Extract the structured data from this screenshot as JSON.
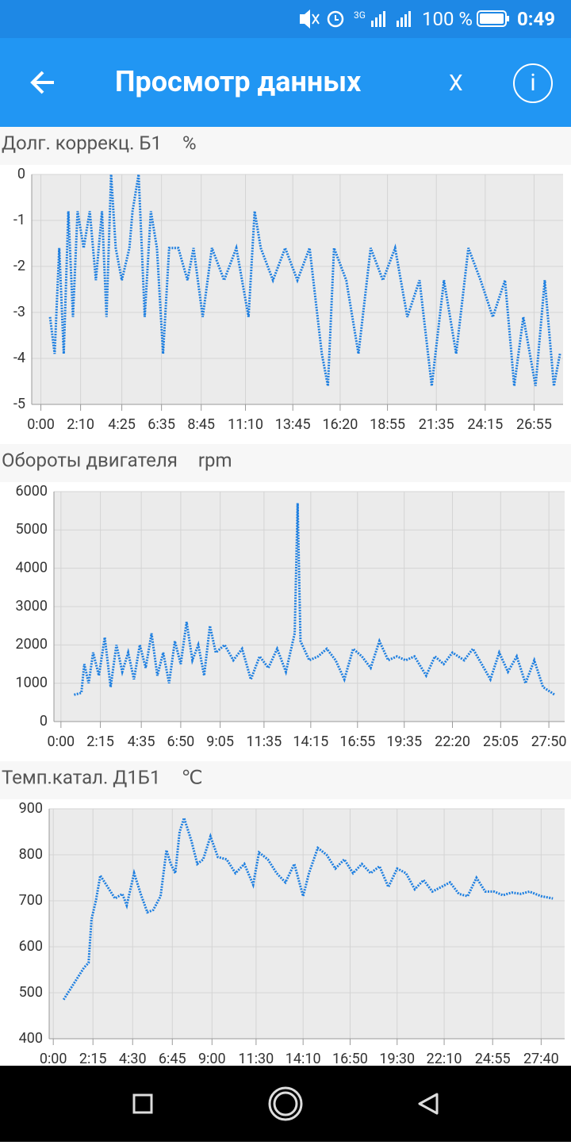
{
  "status_bar": {
    "network": "3G",
    "battery": "100 %",
    "time": "0:49"
  },
  "app_bar": {
    "title": "Просмотр данных",
    "close": "X",
    "info": "i"
  },
  "chart_data": [
    {
      "type": "line",
      "title": "Долг. коррекц. Б1",
      "unit": "%",
      "color": "#1e7fe0",
      "grid": true,
      "xlim": [
        -30,
        1710
      ],
      "ylim": [
        -5,
        0
      ],
      "yticks": [
        -5,
        -4,
        -3,
        -2,
        -1,
        0
      ],
      "xticks": [
        {
          "value": 0,
          "label": "0:00"
        },
        {
          "value": 130,
          "label": "2:10"
        },
        {
          "value": 265,
          "label": "4:25"
        },
        {
          "value": 395,
          "label": "6:35"
        },
        {
          "value": 525,
          "label": "8:45"
        },
        {
          "value": 670,
          "label": "11:10"
        },
        {
          "value": 825,
          "label": "13:45"
        },
        {
          "value": 980,
          "label": "16:20"
        },
        {
          "value": 1135,
          "label": "18:55"
        },
        {
          "value": 1295,
          "label": "21:35"
        },
        {
          "value": 1455,
          "label": "24:15"
        },
        {
          "value": 1615,
          "label": "26:55"
        }
      ],
      "x": [
        30,
        45,
        60,
        75,
        90,
        105,
        120,
        140,
        160,
        180,
        200,
        215,
        230,
        245,
        265,
        290,
        300,
        320,
        340,
        360,
        380,
        400,
        420,
        450,
        480,
        500,
        530,
        560,
        600,
        640,
        680,
        700,
        720,
        760,
        800,
        840,
        880,
        920,
        940,
        960,
        1000,
        1040,
        1080,
        1120,
        1160,
        1200,
        1240,
        1280,
        1320,
        1360,
        1400,
        1440,
        1480,
        1520,
        1550,
        1580,
        1620,
        1650,
        1680,
        1700
      ],
      "values": [
        -3.1,
        -3.9,
        -1.6,
        -3.9,
        -0.8,
        -3.1,
        -0.8,
        -1.6,
        -0.8,
        -2.3,
        -0.8,
        -3.1,
        0,
        -1.6,
        -2.3,
        -1.6,
        -0.8,
        0,
        -3.1,
        -0.8,
        -1.6,
        -3.9,
        -1.6,
        -1.6,
        -2.3,
        -1.6,
        -3.1,
        -1.6,
        -2.3,
        -1.6,
        -3.1,
        -0.8,
        -1.6,
        -2.3,
        -1.6,
        -2.3,
        -1.6,
        -3.9,
        -4.6,
        -1.6,
        -2.3,
        -3.9,
        -1.6,
        -2.3,
        -1.6,
        -3.1,
        -2.3,
        -4.6,
        -2.3,
        -3.9,
        -1.6,
        -2.3,
        -3.1,
        -2.3,
        -4.6,
        -3.1,
        -4.6,
        -2.3,
        -4.6,
        -3.9
      ]
    },
    {
      "type": "line",
      "title": "Обороты двигателя",
      "unit": "rpm",
      "color": "#1e7fe0",
      "grid": true,
      "xlim": [
        -24,
        1724
      ],
      "ylim": [
        0,
        6000
      ],
      "yticks": [
        0,
        1000,
        2000,
        3000,
        4000,
        5000,
        6000
      ],
      "xticks": [
        {
          "value": 0,
          "label": "0:00"
        },
        {
          "value": 135,
          "label": "2:15"
        },
        {
          "value": 275,
          "label": "4:35"
        },
        {
          "value": 410,
          "label": "6:50"
        },
        {
          "value": 545,
          "label": "9:05"
        },
        {
          "value": 695,
          "label": "11:35"
        },
        {
          "value": 855,
          "label": "14:15"
        },
        {
          "value": 1015,
          "label": "16:55"
        },
        {
          "value": 1175,
          "label": "19:35"
        },
        {
          "value": 1340,
          "label": "22:20"
        },
        {
          "value": 1505,
          "label": "25:05"
        },
        {
          "value": 1670,
          "label": "27:50"
        }
      ],
      "x": [
        45,
        70,
        80,
        95,
        110,
        130,
        150,
        170,
        190,
        210,
        230,
        250,
        270,
        290,
        310,
        330,
        350,
        370,
        390,
        410,
        430,
        450,
        470,
        490,
        510,
        530,
        560,
        590,
        620,
        650,
        680,
        710,
        740,
        770,
        800,
        810,
        820,
        850,
        880,
        910,
        940,
        970,
        1000,
        1030,
        1060,
        1090,
        1120,
        1150,
        1180,
        1210,
        1250,
        1280,
        1310,
        1340,
        1380,
        1410,
        1440,
        1470,
        1500,
        1530,
        1560,
        1590,
        1620,
        1650,
        1690
      ],
      "values": [
        700,
        750,
        1500,
        1000,
        1800,
        1200,
        2200,
        900,
        2000,
        1300,
        1800,
        1100,
        2000,
        1400,
        2300,
        1200,
        1800,
        1000,
        2100,
        1500,
        2600,
        1600,
        2000,
        1200,
        2500,
        1800,
        2000,
        1600,
        1900,
        1100,
        1700,
        1400,
        1900,
        1300,
        2300,
        5700,
        2100,
        1600,
        1700,
        1900,
        1600,
        1100,
        1900,
        1700,
        1400,
        2100,
        1600,
        1700,
        1600,
        1700,
        1200,
        1700,
        1500,
        1800,
        1600,
        1900,
        1500,
        1100,
        1800,
        1300,
        1700,
        1000,
        1600,
        900,
        700
      ]
    },
    {
      "type": "line",
      "title": "Темп.катал. Д1Б1",
      "unit": "℃",
      "color": "#1e7fe0",
      "grid": true,
      "xlim": [
        -14,
        1740
      ],
      "ylim": [
        400,
        900
      ],
      "yticks": [
        400,
        500,
        600,
        700,
        800,
        900
      ],
      "xticks": [
        {
          "value": 0,
          "label": "0:00"
        },
        {
          "value": 135,
          "label": "2:15"
        },
        {
          "value": 270,
          "label": "4:30"
        },
        {
          "value": 405,
          "label": "6:45"
        },
        {
          "value": 540,
          "label": "9:00"
        },
        {
          "value": 690,
          "label": "11:30"
        },
        {
          "value": 850,
          "label": "14:10"
        },
        {
          "value": 1010,
          "label": "16:50"
        },
        {
          "value": 1170,
          "label": "19:30"
        },
        {
          "value": 1330,
          "label": "22:10"
        },
        {
          "value": 1495,
          "label": "24:55"
        },
        {
          "value": 1660,
          "label": "27:40"
        }
      ],
      "x": [
        35,
        70,
        105,
        120,
        130,
        145,
        160,
        180,
        210,
        235,
        250,
        275,
        300,
        320,
        340,
        365,
        385,
        400,
        415,
        430,
        445,
        470,
        490,
        510,
        535,
        560,
        590,
        620,
        650,
        680,
        700,
        730,
        760,
        790,
        820,
        850,
        870,
        900,
        930,
        960,
        990,
        1020,
        1050,
        1080,
        1110,
        1140,
        1170,
        1200,
        1230,
        1260,
        1290,
        1320,
        1350,
        1380,
        1410,
        1440,
        1470,
        1500,
        1530,
        1560,
        1590,
        1620,
        1660,
        1700
      ],
      "values": [
        485,
        520,
        555,
        565,
        660,
        700,
        755,
        735,
        705,
        715,
        690,
        760,
        710,
        675,
        680,
        710,
        810,
        780,
        760,
        850,
        880,
        830,
        780,
        790,
        840,
        795,
        790,
        760,
        780,
        735,
        805,
        790,
        760,
        740,
        780,
        710,
        760,
        815,
        800,
        770,
        790,
        760,
        780,
        760,
        775,
        730,
        770,
        760,
        725,
        745,
        720,
        730,
        740,
        715,
        710,
        750,
        720,
        720,
        712,
        718,
        715,
        720,
        710,
        705
      ]
    }
  ]
}
